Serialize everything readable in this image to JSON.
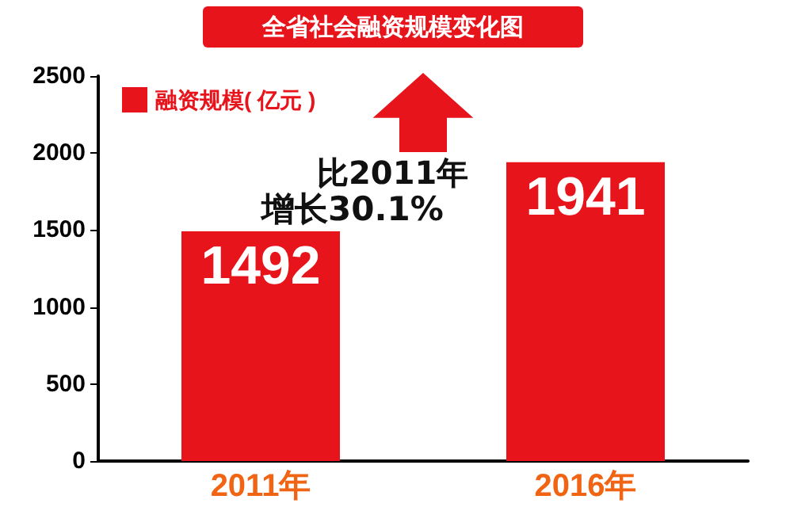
{
  "chart_data": {
    "type": "bar",
    "title": "全省社会融资规模变化图",
    "categories": [
      "2011年",
      "2016年"
    ],
    "series": [
      {
        "name": "融资规模( 亿元 )",
        "color": "#e8141c",
        "values": [
          1492,
          1941
        ]
      }
    ],
    "ylim": [
      0,
      2500
    ],
    "yticks": [
      0,
      500,
      1000,
      1500,
      2000,
      2500
    ],
    "data_labels": true,
    "grid": false,
    "legend": "top left",
    "annotations": [
      "比2011年",
      "增长30.1%"
    ]
  }
}
